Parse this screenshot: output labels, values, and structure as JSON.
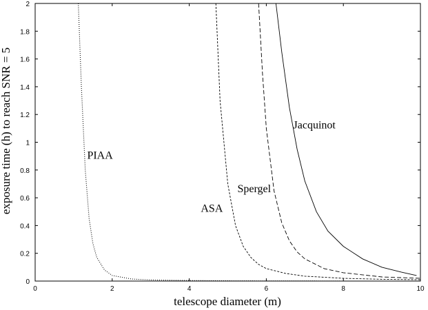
{
  "chart_data": {
    "type": "line",
    "xlabel": "telescope diameter (m)",
    "ylabel": "exposure time (h) to reach SNR = 5",
    "xlim": [
      0,
      10
    ],
    "ylim": [
      0,
      2
    ],
    "xticks": [
      "0",
      "2",
      "4",
      "6",
      "8",
      "10"
    ],
    "yticks": [
      "0",
      "0.2",
      "0.4",
      "0.6",
      "0.8",
      "1",
      "1.2",
      "1.4",
      "1.6",
      "1.8",
      "2"
    ],
    "grid": false,
    "legend": "none",
    "series": [
      {
        "name": "PIAA",
        "style": "dotted",
        "x": [
          1.12,
          1.2,
          1.3,
          1.4,
          1.5,
          1.6,
          1.8,
          2.0,
          2.5,
          3.0,
          4.0,
          5.0,
          6.0,
          7.0,
          8.0,
          9.0,
          10.0
        ],
        "y": [
          2.0,
          1.4,
          0.8,
          0.45,
          0.27,
          0.17,
          0.08,
          0.04,
          0.015,
          0.008,
          0.004,
          0.002,
          0.001,
          0.001,
          0.0,
          0.0,
          0.0
        ]
      },
      {
        "name": "ASA",
        "style": "short-dashed",
        "x": [
          4.69,
          4.8,
          5.0,
          5.2,
          5.4,
          5.6,
          5.8,
          6.0,
          6.5,
          7.0,
          8.0,
          9.0,
          10.0
        ],
        "y": [
          2.0,
          1.3,
          0.7,
          0.4,
          0.25,
          0.17,
          0.12,
          0.09,
          0.055,
          0.035,
          0.02,
          0.013,
          0.01
        ]
      },
      {
        "name": "Spergel",
        "style": "long-dashed",
        "x": [
          5.8,
          5.9,
          6.0,
          6.2,
          6.4,
          6.6,
          6.8,
          7.0,
          7.5,
          8.0,
          9.0,
          10.0
        ],
        "y": [
          2.0,
          1.5,
          1.1,
          0.65,
          0.42,
          0.29,
          0.21,
          0.16,
          0.09,
          0.06,
          0.03,
          0.02
        ]
      },
      {
        "name": "Jacquinot",
        "style": "solid",
        "x": [
          6.25,
          6.4,
          6.6,
          6.8,
          7.0,
          7.3,
          7.6,
          8.0,
          8.5,
          9.0,
          9.5,
          9.9
        ],
        "y": [
          2.0,
          1.65,
          1.25,
          0.95,
          0.72,
          0.5,
          0.36,
          0.25,
          0.16,
          0.1,
          0.065,
          0.04
        ]
      }
    ]
  }
}
